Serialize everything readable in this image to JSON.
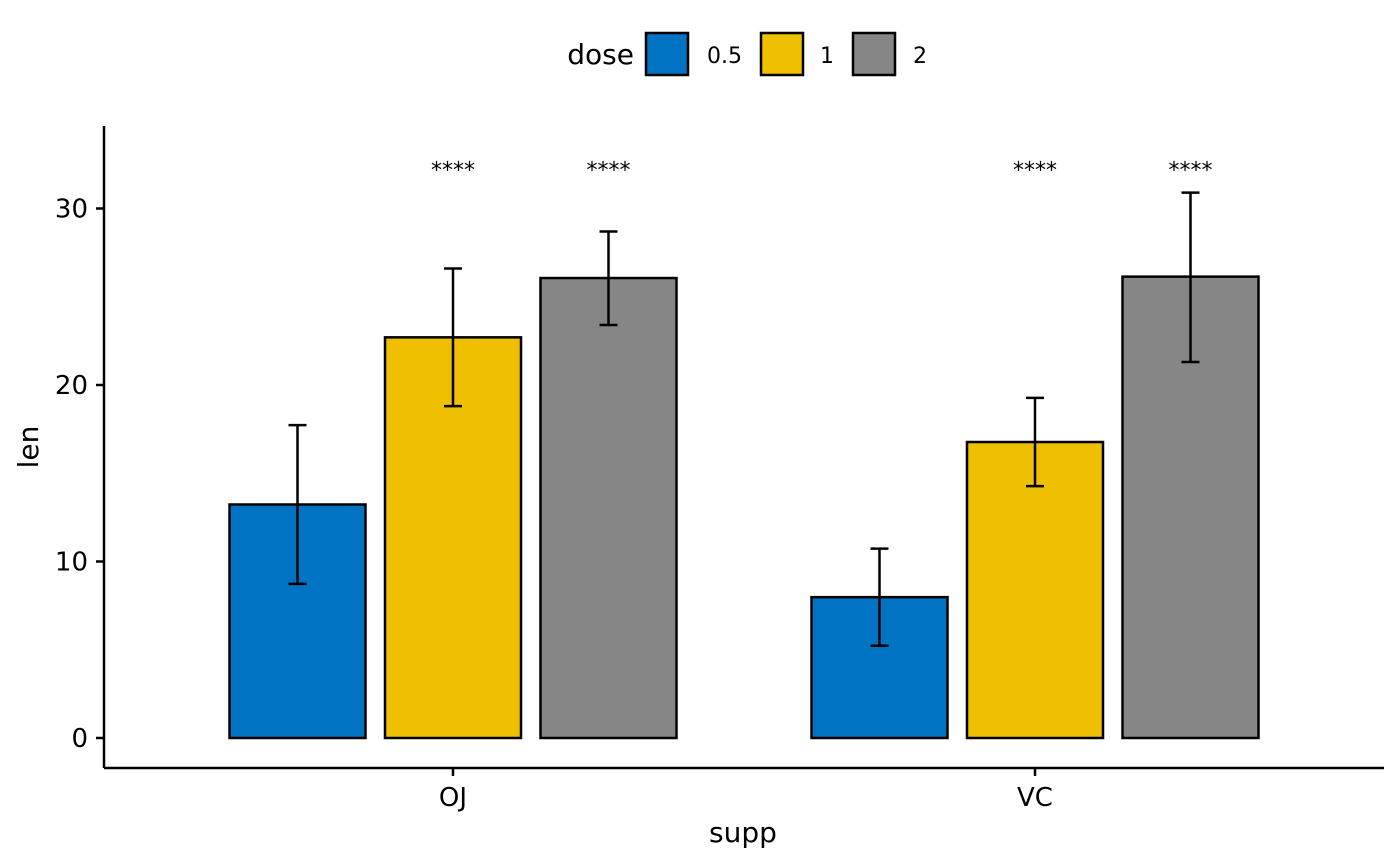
{
  "chart_data": {
    "type": "bar",
    "categories": [
      "OJ",
      "VC"
    ],
    "xlabel": "supp",
    "ylabel": "len",
    "ylim": [
      -1.6,
      34.5
    ],
    "yticks": [
      0,
      10,
      20,
      30
    ],
    "legend": {
      "title": "dose",
      "placement": "top",
      "entries": [
        "0.5",
        "1",
        "2"
      ]
    },
    "colors": [
      "#0073C2",
      "#EFC000",
      "#868686"
    ],
    "series": [
      {
        "name": "0.5",
        "values": [
          13.23,
          7.98
        ],
        "err_low": [
          8.73,
          5.23
        ],
        "err_high": [
          17.73,
          10.73
        ]
      },
      {
        "name": "1",
        "values": [
          22.7,
          16.77
        ],
        "err_low": [
          18.8,
          14.27
        ],
        "err_high": [
          26.6,
          19.27
        ]
      },
      {
        "name": "2",
        "values": [
          26.06,
          26.14
        ],
        "err_low": [
          23.4,
          21.3
        ],
        "err_high": [
          28.7,
          30.9
        ]
      }
    ],
    "annotations": [
      {
        "category": "OJ",
        "series": "1",
        "label": "****"
      },
      {
        "category": "OJ",
        "series": "2",
        "label": "****"
      },
      {
        "category": "VC",
        "series": "1",
        "label": "****"
      },
      {
        "category": "VC",
        "series": "2",
        "label": "****"
      }
    ],
    "annotation_y": 32.2,
    "grid": false
  }
}
